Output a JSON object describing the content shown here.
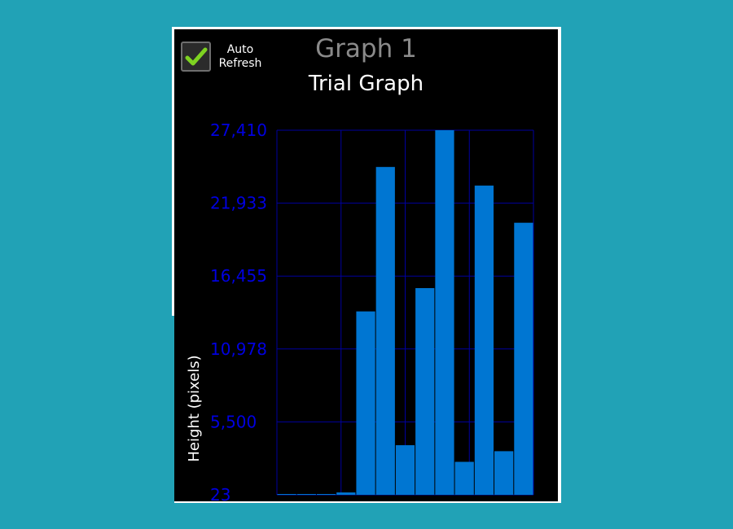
{
  "window": {
    "graph_name": "Graph 1"
  },
  "controls": {
    "auto_refresh": {
      "line1": "Auto",
      "line2": "Refresh",
      "checked": true,
      "check_color": "#7ed321"
    }
  },
  "chart_data": {
    "type": "bar",
    "title": "Trial Graph",
    "ylabel": "Height (pixels)",
    "xlabel": "",
    "ylim": [
      23,
      27410
    ],
    "yticks": [
      {
        "value": 23,
        "label": "23"
      },
      {
        "value": 5500,
        "label": "5,500"
      },
      {
        "value": 10978,
        "label": "10,978"
      },
      {
        "value": 16455,
        "label": "16,455"
      },
      {
        "value": 21933,
        "label": "21,933"
      },
      {
        "value": 27410,
        "label": "27,410"
      }
    ],
    "values": [
      23,
      23,
      23,
      200,
      13800,
      24650,
      3750,
      15550,
      27410,
      2500,
      23250,
      3300,
      20460
    ],
    "colors": {
      "bar": "#0076d2",
      "grid": "#0000a0",
      "tick_label": "#0000e0",
      "axis_label": "#ffffff",
      "background": "#000000"
    },
    "grid": true
  }
}
